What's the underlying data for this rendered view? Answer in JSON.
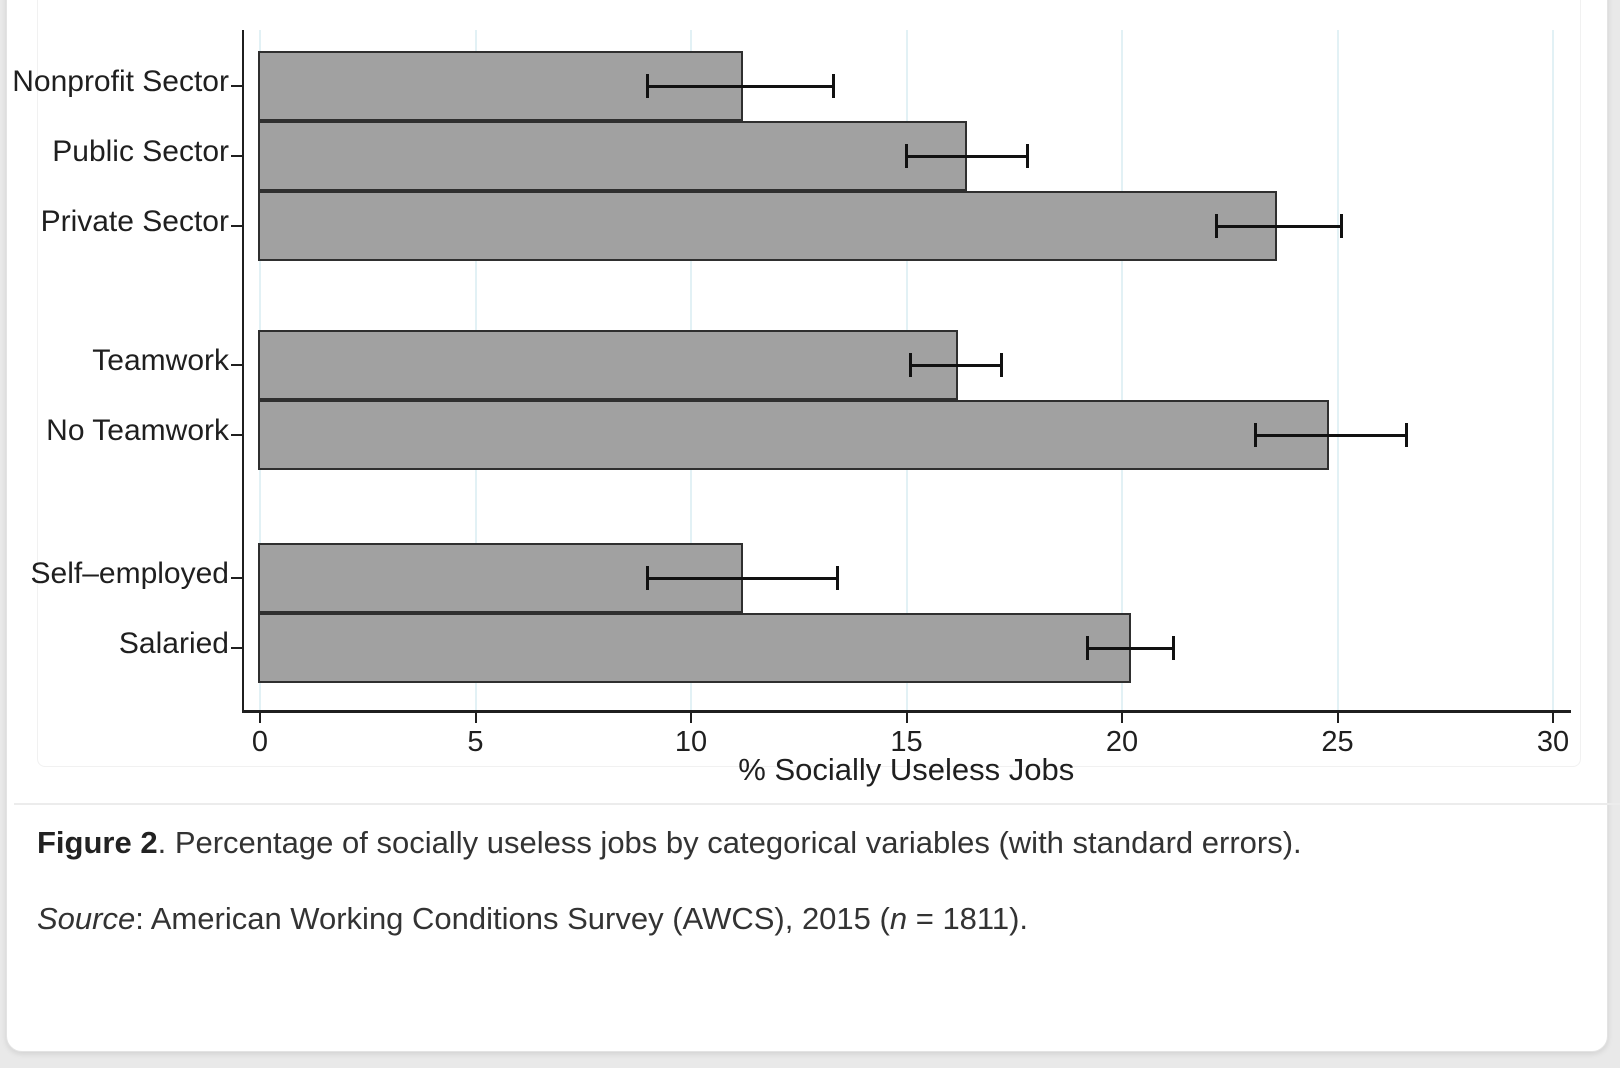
{
  "page": {
    "caption": {
      "figure_label": "Figure 2",
      "text": ". Percentage of socially useless jobs by categorical variables (with standard errors)."
    },
    "source": {
      "label": "Source",
      "text_mid": ": American Working Conditions Survey (AWCS), 2015 (",
      "n_var": "n",
      "text_end": " = 1811)."
    }
  },
  "chart_data": {
    "type": "bar",
    "orientation": "horizontal",
    "title": "",
    "xlabel": "% Socially Useless Jobs",
    "ylabel": "",
    "xlim": [
      0,
      30.4
    ],
    "xticks": [
      0,
      5,
      10,
      15,
      20,
      25,
      30
    ],
    "grid": "vertical light gridlines at each x tick",
    "legend": "none",
    "groups": [
      [
        "Nonprofit Sector",
        "Public Sector",
        "Private Sector"
      ],
      [
        "Teamwork",
        "No Teamwork"
      ],
      [
        "Self–employed",
        "Salaried"
      ]
    ],
    "categories": [
      "Nonprofit Sector",
      "Public Sector",
      "Private Sector",
      "Teamwork",
      "No Teamwork",
      "Self–employed",
      "Salaried"
    ],
    "values": [
      11.2,
      16.4,
      23.6,
      16.2,
      24.8,
      11.2,
      20.2
    ],
    "error_low": [
      9.0,
      15.0,
      22.2,
      15.1,
      23.1,
      9.0,
      19.2
    ],
    "error_high": [
      13.3,
      17.8,
      25.1,
      17.2,
      26.6,
      13.4,
      21.2
    ],
    "colors": {
      "bar_fill": "#a1a1a1",
      "bar_border": "#2f2f2f",
      "gridline": "#e2f1f5",
      "axis": "#1f1f1f",
      "error_bar": "#111111",
      "text": "#1f1f1f"
    }
  }
}
